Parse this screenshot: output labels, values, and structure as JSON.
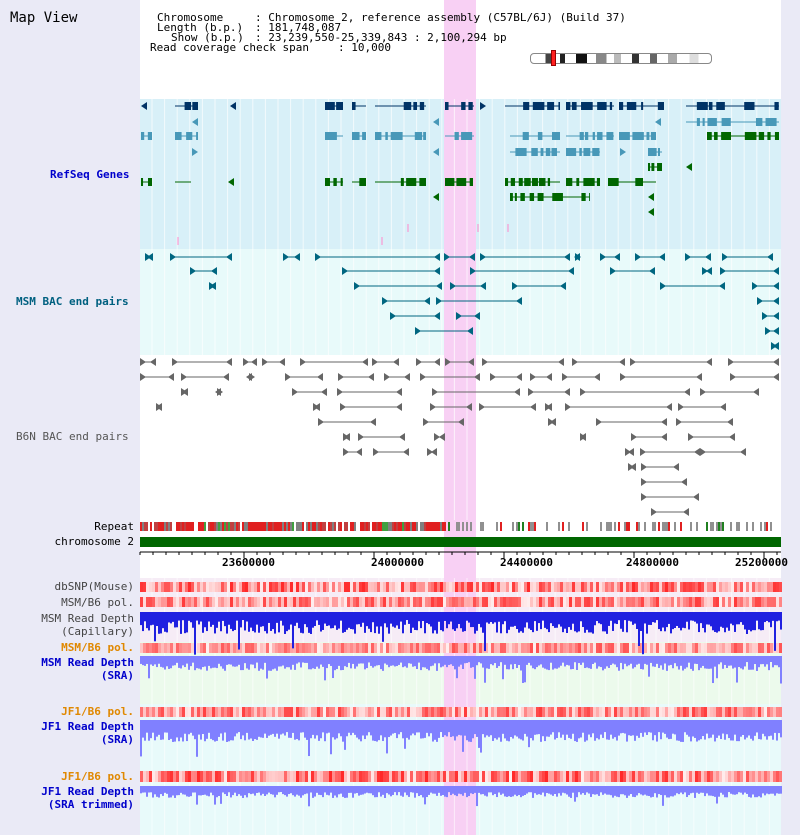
{
  "panel_title": "Map View",
  "header": {
    "chromosome_key": "Chromosome",
    "chromosome_val": ": Chromosome 2, reference assembly (C57BL/6J) (Build 37)",
    "length_key": "Length (b.p.)",
    "length_val": ": 181,748,087",
    "show_key": "Show (b.p.)",
    "show_val": ": 23,239,550-25,339,843 : 2,100,294 bp",
    "coverage_key": "Read coverage check span",
    "coverage_val": ": 10,000"
  },
  "tracks": {
    "refseq": "RefSeq Genes",
    "msm_bac": "MSM BAC end pairs",
    "b6n_bac": "B6N BAC end pairs",
    "repeat": "Repeat",
    "chromosome": "chromosome 2",
    "dbsnp": "dbSNP(Mouse)",
    "msm_b6_pol_1": "MSM/B6 pol.",
    "msm_depth_cap_1": "MSM Read Depth",
    "msm_depth_cap_2": "(Capillary)",
    "msm_b6_pol_2": "MSM/B6 pol.",
    "msm_depth_sra_1": "MSM Read Depth",
    "msm_depth_sra_2": "(SRA)",
    "jf1_b6_pol_1": "JF1/B6 pol.",
    "jf1_depth_sra_1": "JF1 Read Depth",
    "jf1_depth_sra_2": "(SRA)",
    "jf1_b6_pol_2": "JF1/B6 pol.",
    "jf1_depth_trim_1": "JF1 Read Depth",
    "jf1_depth_trim_2": "(SRA trimmed)"
  },
  "axis_ticks": [
    "23600000",
    "24000000",
    "24400000",
    "24800000",
    "25200000"
  ],
  "colors": {
    "highlight": "#f8d0f4",
    "refseq_bg": "#d8f0f8",
    "bac_bg": "#e8fafa",
    "gene_dark": "#003366",
    "gene_mid": "#4898b8",
    "gene_green": "#006600",
    "msm_bac": "#006680",
    "b6n_bac": "#666666",
    "chromosome_bar": "#006600",
    "depth_blue": "#2020e0",
    "depth_light": "#8080ff",
    "label_blue": "#0000cc",
    "label_orange": "#e08800",
    "label_teal": "#006080",
    "label_navy": "#000080"
  }
}
